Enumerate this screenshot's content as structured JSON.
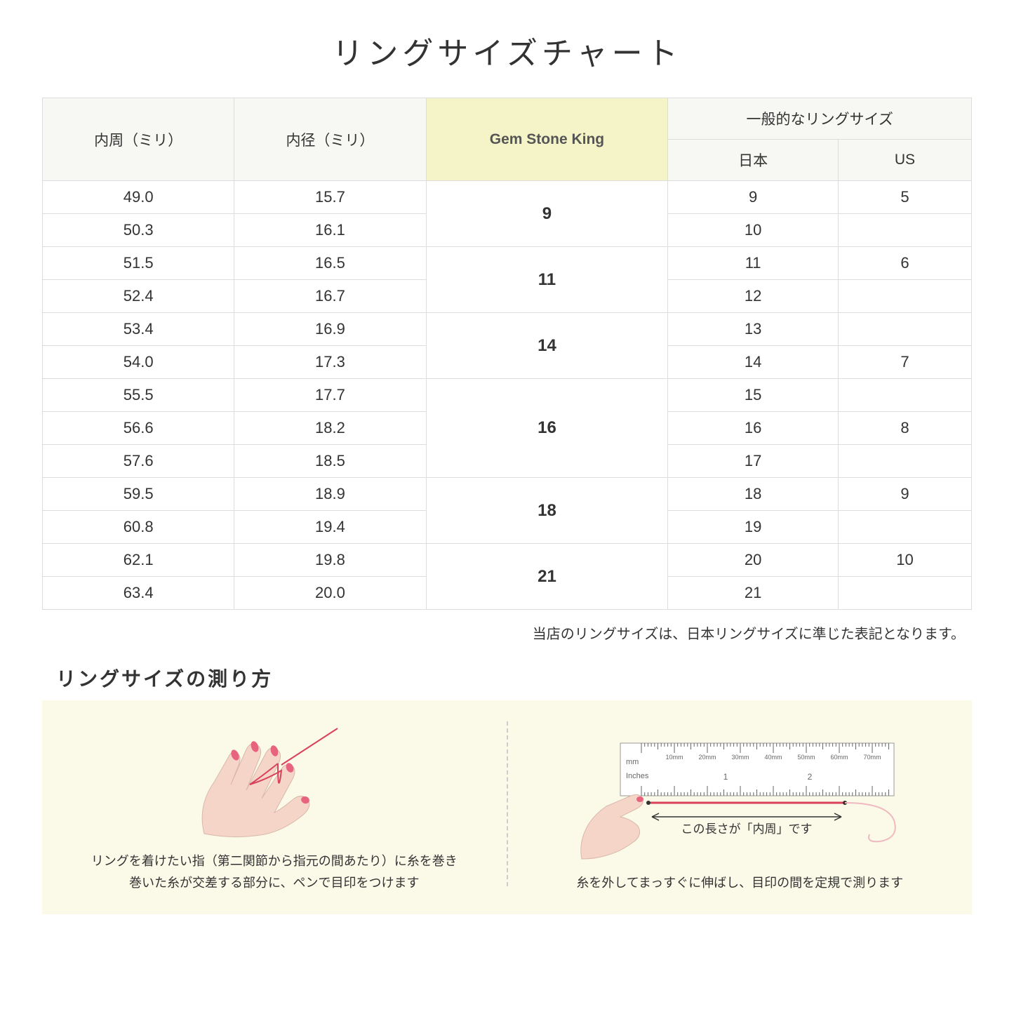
{
  "title": "リングサイズチャート",
  "headers": {
    "circumference": "内周（ミリ）",
    "diameter": "内径（ミリ）",
    "gsk": "Gem Stone King",
    "common": "一般的なリングサイズ",
    "japan": "日本",
    "us": "US"
  },
  "groups": [
    {
      "gsk": "9",
      "rows": [
        {
          "circ": "49.0",
          "dia": "15.7",
          "jp": "9",
          "us": "5"
        },
        {
          "circ": "50.3",
          "dia": "16.1",
          "jp": "10",
          "us": ""
        }
      ]
    },
    {
      "gsk": "11",
      "rows": [
        {
          "circ": "51.5",
          "dia": "16.5",
          "jp": "11",
          "us": "6"
        },
        {
          "circ": "52.4",
          "dia": "16.7",
          "jp": "12",
          "us": ""
        }
      ]
    },
    {
      "gsk": "14",
      "rows": [
        {
          "circ": "53.4",
          "dia": "16.9",
          "jp": "13",
          "us": ""
        },
        {
          "circ": "54.0",
          "dia": "17.3",
          "jp": "14",
          "us": "7"
        }
      ]
    },
    {
      "gsk": "16",
      "rows": [
        {
          "circ": "55.5",
          "dia": "17.7",
          "jp": "15",
          "us": ""
        },
        {
          "circ": "56.6",
          "dia": "18.2",
          "jp": "16",
          "us": "8"
        },
        {
          "circ": "57.6",
          "dia": "18.5",
          "jp": "17",
          "us": ""
        }
      ]
    },
    {
      "gsk": "18",
      "rows": [
        {
          "circ": "59.5",
          "dia": "18.9",
          "jp": "18",
          "us": "9"
        },
        {
          "circ": "60.8",
          "dia": "19.4",
          "jp": "19",
          "us": ""
        }
      ]
    },
    {
      "gsk": "21",
      "rows": [
        {
          "circ": "62.1",
          "dia": "19.8",
          "jp": "20",
          "us": "10"
        },
        {
          "circ": "63.4",
          "dia": "20.0",
          "jp": "21",
          "us": ""
        }
      ]
    }
  ],
  "footnote": "当店のリングサイズは、日本リングサイズに準じた表記となります。",
  "measure": {
    "title": "リングサイズの測り方",
    "left_caption": "リングを着けたい指（第二関節から指元の間あたり）に糸を巻き\n巻いた糸が交差する部分に、ペンで目印をつけます",
    "right_caption": "糸を外してまっすぐに伸ばし、目印の間を定規で測ります",
    "ruler_mm": "mm",
    "ruler_inches": "Inches",
    "ruler_ticks": [
      "10mm",
      "20mm",
      "30mm",
      "40mm",
      "50mm",
      "60mm",
      "70mm"
    ],
    "ruler_inch_marks": [
      "1",
      "2"
    ],
    "arrow_label": "この長さが「内周」です"
  },
  "colors": {
    "header_bg": "#f7f7f3",
    "highlight_bg": "#f5f4c8",
    "border": "#dddddd",
    "panel_bg": "#fbf9e8",
    "thread": "#d9425a",
    "skin": "#f5d5c8",
    "nail": "#e8637d"
  }
}
